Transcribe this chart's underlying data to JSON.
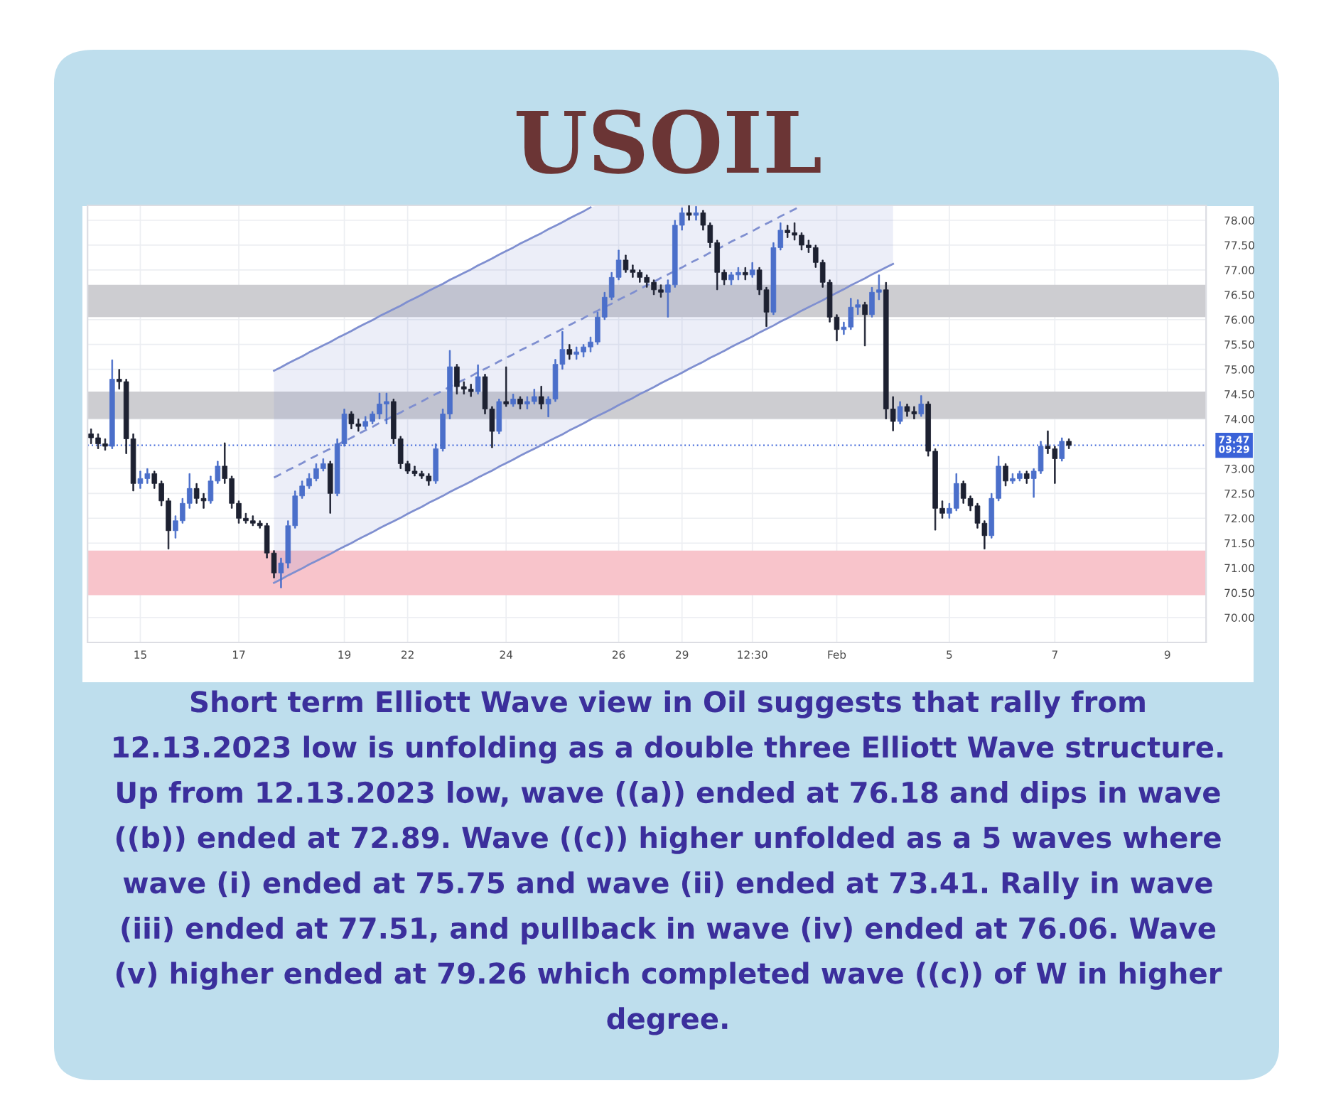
{
  "chart_data": {
    "type": "candlestick",
    "title": "USOIL",
    "categories": [
      null,
      null,
      null,
      null,
      null,
      null,
      null,
      "15",
      null,
      null,
      null,
      null,
      null,
      null,
      null,
      null,
      null,
      null,
      null,
      null,
      null,
      "17",
      null,
      null,
      null,
      null,
      null,
      null,
      null,
      null,
      null,
      null,
      null,
      null,
      null,
      null,
      "19",
      null,
      null,
      null,
      null,
      null,
      null,
      null,
      null,
      "22",
      null,
      null,
      null,
      null,
      null,
      null,
      null,
      null,
      null,
      null,
      null,
      null,
      null,
      "24",
      null,
      null,
      null,
      null,
      null,
      null,
      null,
      null,
      null,
      null,
      null,
      null,
      null,
      null,
      null,
      "26",
      null,
      null,
      null,
      null,
      null,
      null,
      null,
      null,
      "29",
      null,
      null,
      null,
      null,
      null,
      null,
      null,
      null,
      null,
      "12:30",
      null,
      null,
      null,
      null,
      null,
      null,
      null,
      null,
      null,
      null,
      null,
      "Feb",
      null,
      null,
      null,
      null,
      null,
      null,
      null,
      null,
      null,
      null,
      null,
      null,
      null,
      null,
      null,
      "5",
      null,
      null,
      null,
      null,
      null,
      null,
      null,
      null,
      null,
      null,
      null,
      null,
      null,
      null,
      "7",
      null,
      null,
      null,
      null,
      null,
      null,
      null,
      null,
      null,
      null,
      null,
      null,
      null,
      null,
      null,
      "9",
      null,
      null,
      null,
      null,
      null
    ],
    "ohlc": [
      [
        73.7,
        73.8,
        73.5,
        73.62
      ],
      [
        73.62,
        73.7,
        73.4,
        73.5
      ],
      [
        73.5,
        73.6,
        73.37,
        73.45
      ],
      [
        73.45,
        75.19,
        73.4,
        74.8
      ],
      [
        74.8,
        75.0,
        74.6,
        74.75
      ],
      [
        74.75,
        74.8,
        73.3,
        73.6
      ],
      [
        73.6,
        73.7,
        72.55,
        72.7
      ],
      [
        72.7,
        72.95,
        72.6,
        72.8
      ],
      [
        72.8,
        73.0,
        72.7,
        72.9
      ],
      [
        72.9,
        72.95,
        72.6,
        72.7
      ],
      [
        72.7,
        72.75,
        72.25,
        72.35
      ],
      [
        72.35,
        72.4,
        71.38,
        71.75
      ],
      [
        71.75,
        72.05,
        71.6,
        71.95
      ],
      [
        71.95,
        72.4,
        71.9,
        72.3
      ],
      [
        72.3,
        72.9,
        72.2,
        72.6
      ],
      [
        72.6,
        72.7,
        72.3,
        72.4
      ],
      [
        72.4,
        72.5,
        72.2,
        72.35
      ],
      [
        72.35,
        72.85,
        72.3,
        72.75
      ],
      [
        72.75,
        73.15,
        72.7,
        73.05
      ],
      [
        73.05,
        73.52,
        72.7,
        72.8
      ],
      [
        72.8,
        72.85,
        72.2,
        72.3
      ],
      [
        72.3,
        72.35,
        71.9,
        72.0
      ],
      [
        72.0,
        72.1,
        71.9,
        71.95
      ],
      [
        71.95,
        72.05,
        71.85,
        71.9
      ],
      [
        71.9,
        71.95,
        71.8,
        71.85
      ],
      [
        71.85,
        71.9,
        71.2,
        71.3
      ],
      [
        71.3,
        71.35,
        70.8,
        70.9
      ],
      [
        70.9,
        71.2,
        70.6,
        71.1
      ],
      [
        71.1,
        71.95,
        71.0,
        71.85
      ],
      [
        71.85,
        72.55,
        71.8,
        72.45
      ],
      [
        72.45,
        72.75,
        72.4,
        72.65
      ],
      [
        72.65,
        72.9,
        72.6,
        72.8
      ],
      [
        72.8,
        73.1,
        72.75,
        73.0
      ],
      [
        73.0,
        73.2,
        72.95,
        73.1
      ],
      [
        73.1,
        73.15,
        72.1,
        72.5
      ],
      [
        72.5,
        73.6,
        72.45,
        73.5
      ],
      [
        73.5,
        74.2,
        73.45,
        74.1
      ],
      [
        74.1,
        74.15,
        73.8,
        73.9
      ],
      [
        73.9,
        74.0,
        73.75,
        73.85
      ],
      [
        73.85,
        74.05,
        73.8,
        73.95
      ],
      [
        73.95,
        74.15,
        73.9,
        74.1
      ],
      [
        74.1,
        74.52,
        74.0,
        74.3
      ],
      [
        74.3,
        74.52,
        73.9,
        74.35
      ],
      [
        74.35,
        74.4,
        73.5,
        73.6
      ],
      [
        73.6,
        73.65,
        73.0,
        73.1
      ],
      [
        73.1,
        73.15,
        72.9,
        72.95
      ],
      [
        72.95,
        73.05,
        72.85,
        72.9
      ],
      [
        72.9,
        72.95,
        72.8,
        72.85
      ],
      [
        72.85,
        72.9,
        72.66,
        72.75
      ],
      [
        72.75,
        73.5,
        72.7,
        73.4
      ],
      [
        73.4,
        74.2,
        73.35,
        74.1
      ],
      [
        74.1,
        75.38,
        74.0,
        75.05
      ],
      [
        75.05,
        75.1,
        74.5,
        74.65
      ],
      [
        74.65,
        74.75,
        74.5,
        74.6
      ],
      [
        74.6,
        74.7,
        74.45,
        74.55
      ],
      [
        74.55,
        75.09,
        74.5,
        74.85
      ],
      [
        74.85,
        74.9,
        74.1,
        74.2
      ],
      [
        74.2,
        74.25,
        73.42,
        73.75
      ],
      [
        73.75,
        74.4,
        73.7,
        74.35
      ],
      [
        74.35,
        75.05,
        74.25,
        74.3
      ],
      [
        74.3,
        74.5,
        74.25,
        74.4
      ],
      [
        74.4,
        74.45,
        74.2,
        74.3
      ],
      [
        74.3,
        74.45,
        74.2,
        74.35
      ],
      [
        74.35,
        74.6,
        74.3,
        74.45
      ],
      [
        74.45,
        74.66,
        74.2,
        74.3
      ],
      [
        74.3,
        74.45,
        74.04,
        74.4
      ],
      [
        74.4,
        75.2,
        74.35,
        75.1
      ],
      [
        75.1,
        75.76,
        75.0,
        75.4
      ],
      [
        75.4,
        75.5,
        75.2,
        75.3
      ],
      [
        75.3,
        75.45,
        75.2,
        75.35
      ],
      [
        75.35,
        75.5,
        75.25,
        75.45
      ],
      [
        75.45,
        75.65,
        75.35,
        75.55
      ],
      [
        75.55,
        76.15,
        75.5,
        76.05
      ],
      [
        76.05,
        76.55,
        76.0,
        76.45
      ],
      [
        76.45,
        76.95,
        76.4,
        76.85
      ],
      [
        76.85,
        77.4,
        76.8,
        77.2
      ],
      [
        77.2,
        77.3,
        76.95,
        77.0
      ],
      [
        77.0,
        77.1,
        76.85,
        76.95
      ],
      [
        76.95,
        77.0,
        76.75,
        76.85
      ],
      [
        76.85,
        76.9,
        76.65,
        76.75
      ],
      [
        76.75,
        76.8,
        76.5,
        76.6
      ],
      [
        76.6,
        76.7,
        76.45,
        76.55
      ],
      [
        76.55,
        76.8,
        76.05,
        76.7
      ],
      [
        76.7,
        78.0,
        76.65,
        77.9
      ],
      [
        77.9,
        78.25,
        77.8,
        78.15
      ],
      [
        78.15,
        78.3,
        78.0,
        78.1
      ],
      [
        78.1,
        78.28,
        78.0,
        78.15
      ],
      [
        78.15,
        78.2,
        77.8,
        77.9
      ],
      [
        77.9,
        77.95,
        77.45,
        77.55
      ],
      [
        77.55,
        77.6,
        76.6,
        76.95
      ],
      [
        76.95,
        77.0,
        76.7,
        76.8
      ],
      [
        76.8,
        76.95,
        76.7,
        76.9
      ],
      [
        76.9,
        77.05,
        76.8,
        76.95
      ],
      [
        76.95,
        77.05,
        76.8,
        76.9
      ],
      [
        76.9,
        77.15,
        76.85,
        77.0
      ],
      [
        77.0,
        77.05,
        76.5,
        76.6
      ],
      [
        76.6,
        76.65,
        75.86,
        76.15
      ],
      [
        76.15,
        77.55,
        76.1,
        77.45
      ],
      [
        77.45,
        77.95,
        77.4,
        77.8
      ],
      [
        77.8,
        77.9,
        77.65,
        77.75
      ],
      [
        77.75,
        77.95,
        77.6,
        77.7
      ],
      [
        77.7,
        77.75,
        77.4,
        77.5
      ],
      [
        77.5,
        77.6,
        77.35,
        77.45
      ],
      [
        77.45,
        77.5,
        77.05,
        77.15
      ],
      [
        77.15,
        77.2,
        76.65,
        76.75
      ],
      [
        76.75,
        76.8,
        75.95,
        76.05
      ],
      [
        76.05,
        76.1,
        75.57,
        75.8
      ],
      [
        75.8,
        75.95,
        75.7,
        75.85
      ],
      [
        75.85,
        76.43,
        75.8,
        76.25
      ],
      [
        76.25,
        76.4,
        76.1,
        76.3
      ],
      [
        76.3,
        76.35,
        75.47,
        76.1
      ],
      [
        76.1,
        76.65,
        76.05,
        76.55
      ],
      [
        76.55,
        76.9,
        76.4,
        76.6
      ],
      [
        76.6,
        76.75,
        74.0,
        74.2
      ],
      [
        74.2,
        74.45,
        73.76,
        73.95
      ],
      [
        73.95,
        74.35,
        73.9,
        74.25
      ],
      [
        74.25,
        74.3,
        74.05,
        74.15
      ],
      [
        74.15,
        74.25,
        74.0,
        74.1
      ],
      [
        74.1,
        74.47,
        74.05,
        74.3
      ],
      [
        74.3,
        74.35,
        73.25,
        73.35
      ],
      [
        73.35,
        73.4,
        71.76,
        72.2
      ],
      [
        72.2,
        72.35,
        72.0,
        72.1
      ],
      [
        72.1,
        72.3,
        72.0,
        72.2
      ],
      [
        72.2,
        72.9,
        72.15,
        72.7
      ],
      [
        72.7,
        72.75,
        72.3,
        72.4
      ],
      [
        72.4,
        72.45,
        72.15,
        72.25
      ],
      [
        72.25,
        72.3,
        71.8,
        71.9
      ],
      [
        71.9,
        71.95,
        71.38,
        71.65
      ],
      [
        71.65,
        72.5,
        71.6,
        72.4
      ],
      [
        72.4,
        73.25,
        72.35,
        73.05
      ],
      [
        73.05,
        73.1,
        72.65,
        72.75
      ],
      [
        72.75,
        72.9,
        72.7,
        72.8
      ],
      [
        72.8,
        72.95,
        72.75,
        72.9
      ],
      [
        72.9,
        72.95,
        72.7,
        72.8
      ],
      [
        72.8,
        73.0,
        72.42,
        72.95
      ],
      [
        72.95,
        73.55,
        72.9,
        73.45
      ],
      [
        73.45,
        73.76,
        73.3,
        73.4
      ],
      [
        73.4,
        73.45,
        72.7,
        73.2
      ],
      [
        73.2,
        73.62,
        73.15,
        73.55
      ],
      [
        73.55,
        73.6,
        73.4,
        73.47
      ],
      null,
      null,
      null,
      null,
      null,
      null,
      null,
      null,
      null,
      null,
      null,
      null,
      null,
      null,
      null,
      null,
      null,
      null,
      null
    ],
    "colors": [
      "#1d2131",
      "#1d2131",
      "#1d2131",
      "#4b6fca",
      "#1d2131",
      "#1d2131",
      "#1d2131",
      "#4b6fca",
      "#4b6fca",
      "#1d2131",
      "#1d2131",
      "#1d2131",
      "#4b6fca",
      "#4b6fca",
      "#4b6fca",
      "#1d2131",
      "#1d2131",
      "#4b6fca",
      "#4b6fca",
      "#1d2131",
      "#1d2131",
      "#1d2131",
      "#1d2131",
      "#1d2131",
      "#1d2131",
      "#1d2131",
      "#1d2131",
      "#4b6fca",
      "#4b6fca",
      "#4b6fca",
      "#4b6fca",
      "#4b6fca",
      "#4b6fca",
      "#4b6fca",
      "#1d2131",
      "#4b6fca",
      "#4b6fca",
      "#1d2131",
      "#1d2131",
      "#4b6fca",
      "#4b6fca",
      "#4b6fca",
      "#4b6fca",
      "#1d2131",
      "#1d2131",
      "#1d2131",
      "#1d2131",
      "#1d2131",
      "#1d2131",
      "#4b6fca",
      "#4b6fca",
      "#4b6fca",
      "#1d2131",
      "#1d2131",
      "#1d2131",
      "#4b6fca",
      "#1d2131",
      "#1d2131",
      "#4b6fca",
      "#1d2131",
      "#4b6fca",
      "#1d2131",
      "#4b6fca",
      "#4b6fca",
      "#1d2131",
      "#4b6fca",
      "#4b6fca",
      "#4b6fca",
      "#1d2131",
      "#4b6fca",
      "#4b6fca",
      "#4b6fca",
      "#4b6fca",
      "#4b6fca",
      "#4b6fca",
      "#4b6fca",
      "#1d2131",
      "#1d2131",
      "#1d2131",
      "#1d2131",
      "#1d2131",
      "#1d2131",
      "#4b6fca",
      "#4b6fca",
      "#4b6fca",
      "#1d2131",
      "#4b6fca",
      "#1d2131",
      "#1d2131",
      "#1d2131",
      "#1d2131",
      "#4b6fca",
      "#4b6fca",
      "#1d2131",
      "#4b6fca",
      "#1d2131",
      "#1d2131",
      "#4b6fca",
      "#4b6fca",
      "#1d2131",
      "#1d2131",
      "#1d2131",
      "#1d2131",
      "#1d2131",
      "#1d2131",
      "#1d2131",
      "#1d2131",
      "#4b6fca",
      "#4b6fca",
      "#4b6fca",
      "#1d2131",
      "#4b6fca",
      "#4b6fca",
      "#1d2131",
      "#1d2131",
      "#4b6fca",
      "#1d2131",
      "#1d2131",
      "#4b6fca",
      "#1d2131",
      "#1d2131",
      "#1d2131",
      "#4b6fca",
      "#4b6fca",
      "#1d2131",
      "#1d2131",
      "#1d2131",
      "#1d2131",
      "#4b6fca",
      "#4b6fca",
      "#1d2131",
      "#4b6fca",
      "#4b6fca",
      "#1d2131",
      "#4b6fca",
      "#4b6fca",
      "#1d2131",
      "#1d2131",
      "#4b6fca",
      "#1d2131",
      null,
      null,
      null,
      null,
      null,
      null,
      null,
      null,
      null,
      null,
      null,
      null,
      null,
      null,
      null,
      null,
      null,
      null,
      null
    ],
    "series": [
      {
        "type": "line",
        "color": "#7f8fd0",
        "values": [
          null,
          null,
          null,
          null,
          null,
          null,
          null,
          null,
          null,
          null,
          null,
          null,
          null,
          null,
          null,
          null,
          null,
          null,
          null,
          null,
          null,
          null,
          null,
          null,
          null,
          null,
          74.97,
          75.04,
          75.12,
          75.19,
          75.26,
          75.34,
          75.41,
          75.48,
          75.55,
          75.63,
          75.7,
          75.77,
          75.85,
          75.92,
          75.99,
          76.07,
          76.14,
          76.21,
          76.28,
          76.36,
          76.43,
          76.5,
          76.58,
          76.65,
          76.72,
          76.8,
          76.87,
          76.94,
          77.01,
          77.09,
          77.16,
          77.23,
          77.31,
          77.38,
          77.45,
          77.53,
          77.6,
          77.67,
          77.74,
          77.82,
          77.89,
          77.96,
          78.04,
          78.11,
          78.18,
          78.26,
          null,
          null,
          null,
          null,
          null,
          null,
          null,
          null,
          null,
          null,
          null,
          null,
          null,
          null,
          null,
          null,
          null,
          null,
          null,
          null,
          null,
          null,
          null,
          null,
          null,
          null,
          null,
          null,
          null,
          null,
          null,
          null,
          null,
          null,
          null,
          null,
          null,
          null,
          null,
          null,
          null,
          null,
          null,
          null,
          null,
          null,
          null,
          null,
          null,
          null,
          null,
          null,
          null,
          null,
          null,
          null,
          null,
          null,
          null,
          null,
          null,
          null,
          null,
          null,
          null,
          null,
          null,
          null,
          null,
          null,
          null,
          null,
          null,
          null,
          null,
          null,
          null,
          null,
          null,
          null,
          null,
          null,
          null,
          null,
          null,
          null,
          null
        ]
      },
      {
        "type": "line",
        "color": "#7f8fd0",
        "line_style": "dashed",
        "values": [
          null,
          null,
          null,
          null,
          null,
          null,
          null,
          null,
          null,
          null,
          null,
          null,
          null,
          null,
          null,
          null,
          null,
          null,
          null,
          null,
          null,
          null,
          null,
          null,
          null,
          null,
          72.82,
          72.89,
          72.97,
          73.04,
          73.11,
          73.19,
          73.26,
          73.33,
          73.4,
          73.48,
          73.55,
          73.62,
          73.7,
          73.77,
          73.84,
          73.92,
          73.99,
          74.06,
          74.13,
          74.21,
          74.28,
          74.35,
          74.43,
          74.5,
          74.57,
          74.65,
          74.72,
          74.79,
          74.86,
          74.94,
          75.01,
          75.08,
          75.16,
          75.23,
          75.3,
          75.38,
          75.45,
          75.52,
          75.59,
          75.67,
          75.74,
          75.81,
          75.89,
          75.96,
          76.03,
          76.11,
          76.18,
          76.25,
          76.32,
          76.4,
          76.47,
          76.54,
          76.62,
          76.69,
          76.76,
          76.84,
          76.91,
          76.98,
          77.05,
          77.13,
          77.2,
          77.27,
          77.35,
          77.42,
          77.49,
          77.57,
          77.64,
          77.71,
          77.78,
          77.86,
          77.93,
          78.0,
          78.08,
          78.15,
          78.22,
          78.3,
          null,
          null,
          null,
          null,
          null,
          null,
          null,
          null,
          null,
          null,
          null,
          null,
          null,
          null,
          null,
          null,
          null,
          null,
          null,
          null,
          null,
          null,
          null,
          null,
          null,
          null,
          null,
          null,
          null,
          null,
          null,
          null,
          null,
          null,
          null,
          null,
          null,
          null,
          null,
          null,
          null,
          null,
          null,
          null,
          null,
          null,
          null,
          null,
          null,
          null,
          null,
          null,
          null,
          null,
          null,
          null,
          null
        ]
      },
      {
        "type": "line",
        "color": "#7f8fd0",
        "values": [
          null,
          null,
          null,
          null,
          null,
          null,
          null,
          null,
          null,
          null,
          null,
          null,
          null,
          null,
          null,
          null,
          null,
          null,
          null,
          null,
          null,
          null,
          null,
          null,
          null,
          null,
          70.7,
          70.77,
          70.85,
          70.92,
          70.99,
          71.07,
          71.14,
          71.21,
          71.28,
          71.36,
          71.43,
          71.5,
          71.58,
          71.65,
          71.72,
          71.8,
          71.87,
          71.94,
          72.01,
          72.09,
          72.16,
          72.23,
          72.31,
          72.38,
          72.45,
          72.53,
          72.6,
          72.67,
          72.74,
          72.82,
          72.89,
          72.96,
          73.04,
          73.11,
          73.18,
          73.26,
          73.33,
          73.4,
          73.47,
          73.55,
          73.62,
          73.69,
          73.77,
          73.84,
          73.91,
          73.99,
          74.06,
          74.13,
          74.2,
          74.28,
          74.35,
          74.42,
          74.5,
          74.57,
          74.64,
          74.72,
          74.79,
          74.86,
          74.93,
          75.01,
          75.08,
          75.15,
          75.23,
          75.3,
          75.37,
          75.45,
          75.52,
          75.59,
          75.66,
          75.74,
          75.81,
          75.88,
          75.96,
          76.03,
          76.1,
          76.18,
          76.25,
          76.32,
          76.39,
          76.47,
          76.54,
          76.61,
          76.69,
          76.76,
          76.83,
          76.91,
          76.98,
          77.05,
          77.12,
          null,
          null,
          null,
          null,
          null,
          null,
          null,
          null,
          null,
          null,
          null,
          null,
          null,
          null,
          null,
          null,
          null,
          null,
          null,
          null,
          null,
          null,
          null,
          null,
          null,
          null,
          null,
          null,
          null,
          null,
          null,
          null,
          null,
          null,
          null,
          null,
          null,
          null,
          null,
          null,
          null,
          null,
          null,
          null
        ],
        "lower": [
          null,
          null,
          null,
          null,
          null,
          null,
          null,
          null,
          null,
          null,
          null,
          null,
          null,
          null,
          null,
          null,
          null,
          null,
          null,
          null,
          null,
          null,
          null,
          null,
          null,
          null,
          70.7,
          70.77,
          70.85,
          70.92,
          70.99,
          71.07,
          71.14,
          71.21,
          71.28,
          71.36,
          71.43,
          71.5,
          71.58,
          71.65,
          71.72,
          71.8,
          71.87,
          71.94,
          72.01,
          72.09,
          72.16,
          72.23,
          72.31,
          72.38,
          72.45,
          72.53,
          72.6,
          72.67,
          72.74,
          72.82,
          72.89,
          72.96,
          73.04,
          73.11,
          73.18,
          73.26,
          73.33,
          73.4,
          73.47,
          73.55,
          73.62,
          73.69,
          73.77,
          73.84,
          73.91,
          73.99,
          74.06,
          74.13,
          74.2,
          74.28,
          74.35,
          74.42,
          74.5,
          74.57,
          74.64,
          74.72,
          74.79,
          74.86,
          74.93,
          75.01,
          75.08,
          75.15,
          75.23,
          75.3,
          75.37,
          75.45,
          75.52,
          75.59,
          75.66,
          75.74,
          75.81,
          75.88,
          75.96,
          76.03,
          76.1,
          76.18,
          76.25,
          76.32,
          76.39,
          76.47,
          76.54,
          76.61,
          76.69,
          76.76,
          76.83,
          76.91,
          76.98,
          77.05,
          77.12,
          null,
          null,
          null,
          null,
          null,
          null,
          null,
          null,
          null,
          null,
          null,
          null,
          null,
          null,
          null,
          null,
          null,
          null,
          null,
          null,
          null,
          null,
          null,
          null,
          null,
          null,
          null,
          null,
          null,
          null,
          null,
          null,
          null,
          null,
          null,
          null,
          null,
          null,
          null,
          null,
          null,
          null,
          null,
          null
        ],
        "upper": [
          null,
          null,
          null,
          null,
          null,
          null,
          null,
          null,
          null,
          null,
          null,
          null,
          null,
          null,
          null,
          null,
          null,
          null,
          null,
          null,
          null,
          null,
          null,
          null,
          null,
          null,
          74.97,
          75.04,
          75.12,
          75.19,
          75.26,
          75.34,
          75.41,
          75.48,
          75.55,
          75.63,
          75.7,
          75.77,
          75.85,
          75.92,
          75.99,
          76.07,
          76.14,
          76.21,
          76.28,
          76.36,
          76.43,
          76.5,
          76.58,
          76.65,
          76.72,
          76.8,
          76.87,
          76.94,
          77.01,
          77.09,
          77.16,
          77.23,
          77.31,
          77.38,
          77.45,
          77.53,
          77.6,
          77.67,
          77.74,
          77.82,
          77.89,
          77.96,
          78.04,
          78.11,
          78.18,
          78.26,
          78.3,
          78.3,
          78.3,
          78.3,
          78.3,
          78.3,
          78.3,
          78.3,
          78.3,
          78.3,
          78.3,
          78.3,
          78.3,
          78.3,
          78.3,
          78.3,
          78.3,
          78.3,
          78.3,
          78.3,
          78.3,
          78.3,
          78.3,
          78.3,
          78.3,
          78.3,
          78.3,
          78.3,
          78.3,
          78.3,
          78.3,
          78.3,
          78.3,
          78.3,
          78.3,
          78.3,
          78.3,
          78.3,
          78.3,
          78.3,
          78.3,
          78.3,
          78.3,
          null,
          null,
          null,
          null,
          null,
          null,
          null,
          null,
          null,
          null,
          null,
          null,
          null,
          null,
          null,
          null,
          null,
          null,
          null,
          null,
          null,
          null,
          null,
          null,
          null,
          null,
          null,
          null,
          null,
          null,
          null,
          null,
          null,
          null,
          null,
          null,
          null,
          null,
          null,
          null,
          null,
          null,
          null,
          null
        ]
      }
    ],
    "ylim": [
      69.5,
      78.3
    ],
    "yticks": [
      {
        "value": 70,
        "label": "70.00"
      },
      {
        "value": 70.5,
        "label": "70.50"
      },
      {
        "value": 71,
        "label": "71.00"
      },
      {
        "value": 71.5,
        "label": "71.50"
      },
      {
        "value": 72,
        "label": "72.00"
      },
      {
        "value": 72.5,
        "label": "72.50"
      },
      {
        "value": 73,
        "label": "73.00"
      },
      {
        "value": 74,
        "label": "74.00"
      },
      {
        "value": 74.5,
        "label": "74.50"
      },
      {
        "value": 75,
        "label": "75.00"
      },
      {
        "value": 75.5,
        "label": "75.50"
      },
      {
        "value": 76,
        "label": "76.00"
      },
      {
        "value": 76.5,
        "label": "76.50"
      },
      {
        "value": 77,
        "label": "77.00"
      },
      {
        "value": 77.5,
        "label": "77.50"
      },
      {
        "value": 78,
        "label": "78.00"
      }
    ],
    "grid": true,
    "bands": [
      {
        "axis": "y",
        "from": 76.05,
        "to": 76.7,
        "color": "#cdcdd1"
      },
      {
        "axis": "y",
        "from": 74.0,
        "to": 74.55,
        "color": "#cdcdd1"
      },
      {
        "axis": "y",
        "from": 70.45,
        "to": 71.35,
        "color": "#f8c4cb"
      }
    ],
    "ref_lines": [
      {
        "axis": "y",
        "value": 73.47,
        "label": "73.47\n09:29",
        "color": "#3a62d8",
        "line_style": "dotted"
      }
    ],
    "annotations": [
      "Short term Elliott Wave view in Oil suggests that rally from\n12.13.2023 low is unfolding as a double three Elliott Wave structure.\nUp from 12.13.2023 low, wave ((a)) ended at 76.18 and dips in wave\n((b)) ended at 72.89. Wave ((c)) higher unfolded as a 5 waves where\nwave (i) ended at 75.75 and wave (ii) ended at 73.41. Rally in wave\n(iii) ended at 77.51, and pullback in wave (iv) ended at 76.06. Wave\n(v) higher ended at 79.26 which completed wave ((c)) of W in higher\ndegree."
    ]
  }
}
